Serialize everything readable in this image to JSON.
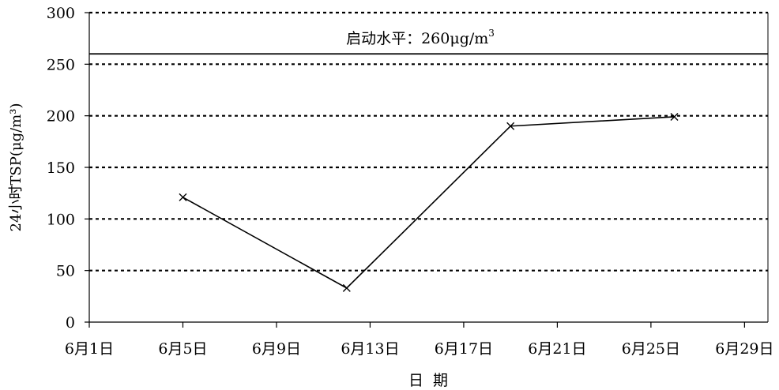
{
  "chart_data": {
    "type": "line",
    "title": "",
    "xlabel": "日  期",
    "ylabel": "24小时TSP(μg/m³)",
    "ylim": [
      0,
      300
    ],
    "yticks": [
      0,
      50,
      100,
      150,
      200,
      250,
      300
    ],
    "xlim": [
      1,
      30
    ],
    "xticks": [
      {
        "day": 1,
        "label": "6月1日"
      },
      {
        "day": 5,
        "label": "6月5日"
      },
      {
        "day": 9,
        "label": "6月9日"
      },
      {
        "day": 13,
        "label": "6月13日"
      },
      {
        "day": 17,
        "label": "6月17日"
      },
      {
        "day": 21,
        "label": "6月21日"
      },
      {
        "day": 25,
        "label": "6月25日"
      },
      {
        "day": 29,
        "label": "6月29日"
      }
    ],
    "grid": "horizontal dotted",
    "series": [
      {
        "marker": "x",
        "points": [
          {
            "day": 5,
            "date": "6月5日",
            "value": 121
          },
          {
            "day": 12,
            "date": "6月12日",
            "value": 33
          },
          {
            "day": 19,
            "date": "6月19日",
            "value": 190
          },
          {
            "day": 26,
            "date": "6月26日",
            "value": 199
          }
        ]
      }
    ],
    "reference_line": {
      "value": 260,
      "label_text": "启动水平：260μg/m",
      "label_sup": "3"
    }
  }
}
